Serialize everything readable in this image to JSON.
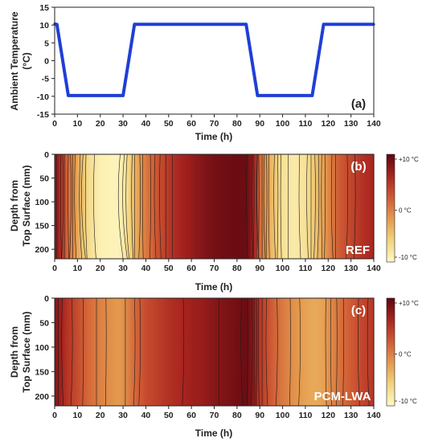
{
  "chart_data": [
    {
      "type": "line",
      "panel_label": "(a)",
      "xlabel": "Time (h)",
      "ylabel": [
        "Ambient Temperature",
        "(°C)"
      ],
      "xlim": [
        0,
        140
      ],
      "ylim": [
        -15,
        15
      ],
      "xticks": [
        0,
        10,
        20,
        30,
        40,
        50,
        60,
        70,
        80,
        90,
        100,
        110,
        120,
        130,
        140
      ],
      "yticks": [
        -15,
        -10,
        -5,
        0,
        5,
        10,
        15
      ],
      "grid": false,
      "series": [
        {
          "color": "#1f3fd6",
          "x": [
            0,
            1,
            6,
            30,
            35,
            84,
            89,
            113,
            118,
            140
          ],
          "y": [
            10.3,
            10.2,
            -9.8,
            -9.8,
            10.2,
            10.2,
            -9.8,
            -9.8,
            10.2,
            10.2
          ]
        }
      ]
    },
    {
      "type": "heatmap",
      "panel_label": "(b)",
      "annotation": "REF",
      "xlabel": "Time (h)",
      "ylabel": [
        "Depth from",
        "Top Surface (mm)"
      ],
      "xlim": [
        0,
        140
      ],
      "ylim": [
        220,
        0
      ],
      "xticks": [
        0,
        10,
        20,
        30,
        40,
        50,
        60,
        70,
        80,
        90,
        100,
        110,
        120,
        130,
        140
      ],
      "yticks": [
        0,
        50,
        100,
        150,
        200
      ],
      "colorbar": {
        "labels": [
          "+10 °C",
          "0 °C",
          "-10 °C"
        ],
        "range": [
          -10,
          10
        ]
      },
      "profile": {
        "time": [
          0,
          2,
          5,
          10,
          15,
          20,
          25,
          28,
          30,
          33,
          36,
          40,
          45,
          50,
          55,
          60,
          65,
          70,
          75,
          80,
          84,
          86,
          88,
          90,
          95,
          100,
          105,
          110,
          115,
          120,
          125,
          130,
          135,
          140
        ],
        "temperature": [
          8,
          6,
          2,
          -3,
          -7,
          -9,
          -9.3,
          -9.3,
          -8.5,
          -6,
          -3,
          0,
          2.5,
          4.5,
          6,
          7,
          8,
          8.7,
          9,
          9.2,
          9.2,
          8,
          5,
          1,
          -4,
          -7.5,
          -8.5,
          -7.5,
          -4.5,
          -1,
          2,
          3.5,
          5,
          6
        ]
      }
    },
    {
      "type": "heatmap",
      "panel_label": "(c)",
      "annotation": "PCM-LWA",
      "xlabel": "Time (h)",
      "ylabel": [
        "Depth from",
        "Top Surface (mm)"
      ],
      "xlim": [
        0,
        140
      ],
      "ylim": [
        220,
        0
      ],
      "xticks": [
        0,
        10,
        20,
        30,
        40,
        50,
        60,
        70,
        80,
        90,
        100,
        110,
        120,
        130,
        140
      ],
      "yticks": [
        0,
        50,
        100,
        150,
        200
      ],
      "colorbar": {
        "labels": [
          "+10 °C",
          "0 °C",
          "-10 °C"
        ],
        "range": [
          -10,
          10
        ]
      },
      "profile": {
        "time": [
          0,
          5,
          10,
          15,
          20,
          25,
          28,
          30,
          33,
          36,
          40,
          45,
          50,
          55,
          60,
          65,
          70,
          75,
          80,
          84,
          86,
          88,
          90,
          95,
          100,
          105,
          110,
          113,
          115,
          118,
          120,
          125,
          130,
          135,
          140
        ],
        "temperature": [
          8,
          5,
          3,
          1,
          -0.5,
          -1.5,
          -2,
          -1.5,
          0,
          1.5,
          3,
          4,
          5,
          5.8,
          6.5,
          7,
          7.8,
          8.3,
          8.8,
          9.2,
          8.5,
          6.5,
          4.5,
          2,
          0,
          -1.5,
          -2.5,
          -3,
          -3,
          -2.5,
          -1.5,
          0.5,
          2,
          3.5,
          4.5
        ]
      }
    }
  ]
}
